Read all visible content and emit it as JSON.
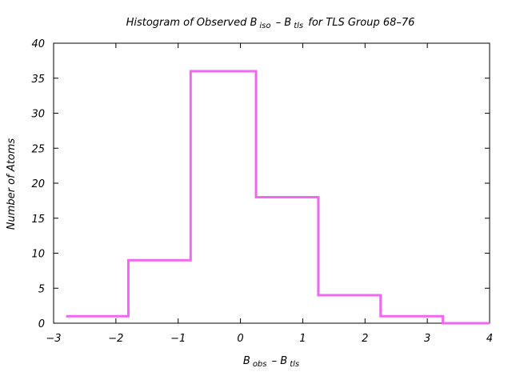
{
  "chart_data": {
    "type": "bar",
    "style": "histogram-step",
    "title": {
      "prefix": "Histogram of Observed B",
      "sub1": "iso",
      "mid": " – B",
      "sub2": "tls",
      "suffix": " for TLS Group 68–76"
    },
    "xlabel": {
      "b1": "B",
      "sub1": "obs",
      "mid": " – B",
      "sub2": "tls"
    },
    "ylabel": "Number of Atoms",
    "xlim": [
      -3,
      4
    ],
    "ylim": [
      0,
      40
    ],
    "xticks": [
      {
        "value": -3,
        "label": "−3"
      },
      {
        "value": -2,
        "label": "−2"
      },
      {
        "value": -1,
        "label": "−1"
      },
      {
        "value": 0,
        "label": "0"
      },
      {
        "value": 1,
        "label": "1"
      },
      {
        "value": 2,
        "label": "2"
      },
      {
        "value": 3,
        "label": "3"
      },
      {
        "value": 4,
        "label": "4"
      }
    ],
    "yticks": [
      {
        "value": 0,
        "label": "0"
      },
      {
        "value": 5,
        "label": "5"
      },
      {
        "value": 10,
        "label": "10"
      },
      {
        "value": 15,
        "label": "15"
      },
      {
        "value": 20,
        "label": "20"
      },
      {
        "value": 25,
        "label": "25"
      },
      {
        "value": 30,
        "label": "30"
      },
      {
        "value": 35,
        "label": "35"
      },
      {
        "value": 40,
        "label": "40"
      }
    ],
    "bin_edges": [
      -2.8,
      -1.8,
      -0.8,
      0.25,
      1.25,
      2.25,
      3.25,
      4.0
    ],
    "values": [
      1,
      9,
      36,
      18,
      4,
      1,
      0
    ],
    "color": "#f067f0",
    "grid": false,
    "legend": "none"
  }
}
